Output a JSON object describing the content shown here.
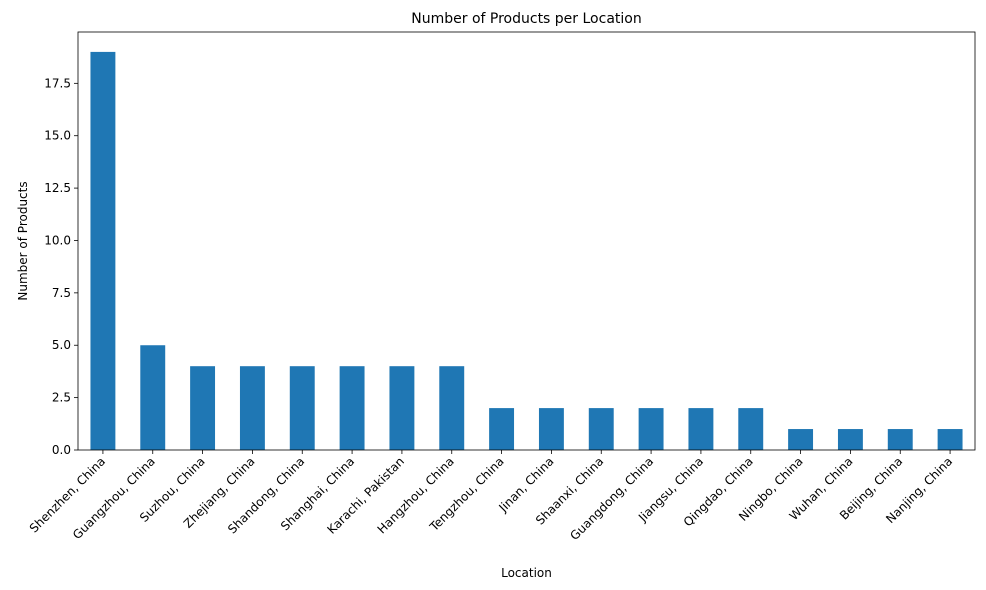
{
  "chart_data": {
    "type": "bar",
    "title": "Number of Products per Location",
    "xlabel": "Location",
    "ylabel": "Number of Products",
    "categories": [
      "Shenzhen, China",
      "Guangzhou, China",
      "Suzhou, China",
      "Zhejiang, China",
      "Shandong, China",
      "Shanghai, China",
      "Karachi, Pakistan",
      "Hangzhou, China",
      "Tengzhou, China",
      "Jinan, China",
      "Shaanxi, China",
      "Guangdong, China",
      "Jiangsu, China",
      "Qingdao, China",
      "Ningbo, China",
      "Wuhan, China",
      "Beijing, China",
      "Nanjing, China"
    ],
    "values": [
      19,
      5,
      4,
      4,
      4,
      4,
      4,
      4,
      2,
      2,
      2,
      2,
      2,
      2,
      1,
      1,
      1,
      1
    ],
    "ylim": [
      0,
      19.95
    ],
    "yticks": [
      0.0,
      2.5,
      5.0,
      7.5,
      10.0,
      12.5,
      15.0,
      17.5
    ],
    "ytick_labels": [
      "0.0",
      "2.5",
      "5.0",
      "7.5",
      "10.0",
      "12.5",
      "15.0",
      "17.5"
    ],
    "bar_color": "#1f77b4",
    "grid": false,
    "legend": "none"
  }
}
